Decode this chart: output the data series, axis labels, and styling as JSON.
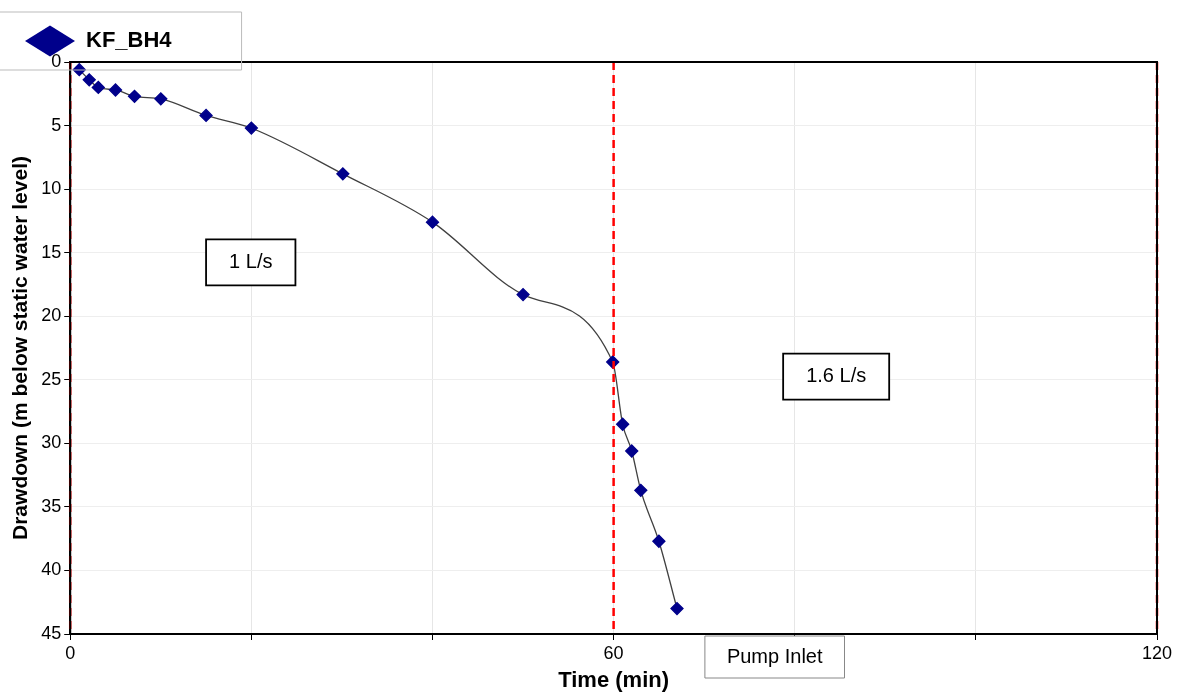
{
  "chart_data": {
    "type": "line",
    "xlabel": "Time (min)",
    "ylabel": "Drawdown (m below static water level)",
    "x": [
      1.0,
      2.1,
      3.1,
      5.0,
      7.1,
      10.0,
      15.0,
      20.0,
      30.1,
      40.0,
      50.0,
      59.9,
      61,
      62,
      63,
      65,
      67
    ],
    "series": [
      {
        "name": "KF_BH4",
        "color": "#00008b",
        "values": [
          0.6,
          1.4,
          2.0,
          2.2,
          2.7,
          2.9,
          4.2,
          5.2,
          8.8,
          12.6,
          18.3,
          23.6,
          28.5,
          30.6,
          33.7,
          37.7,
          43.0
        ]
      }
    ],
    "xlim": [
      0,
      120
    ],
    "xticks": [
      0,
      {
        "value": 20,
        "label": null
      },
      {
        "value": 40,
        "label": null
      },
      60,
      {
        "value": 80,
        "label": null
      },
      {
        "value": 100,
        "label": null
      },
      120
    ],
    "ylim": [
      45,
      0
    ],
    "yticks": [
      0,
      5,
      10,
      15,
      20,
      25,
      30,
      35,
      40,
      45
    ],
    "ref_lines": [
      {
        "axis": "x",
        "value": 0,
        "color": "#ff0000",
        "line_style": "dashed"
      },
      {
        "axis": "x",
        "value": 60,
        "color": "#ff0000",
        "line_style": "dashed"
      },
      {
        "axis": "x",
        "value": 120,
        "color": "#ff0000",
        "line_style": "dashed"
      }
    ],
    "annotations": [
      "1 L/s",
      "1.6 L/s",
      "Pump Inlet"
    ],
    "grid": true,
    "legend": "top left",
    "marker": "diamond",
    "line_style": "solid"
  }
}
